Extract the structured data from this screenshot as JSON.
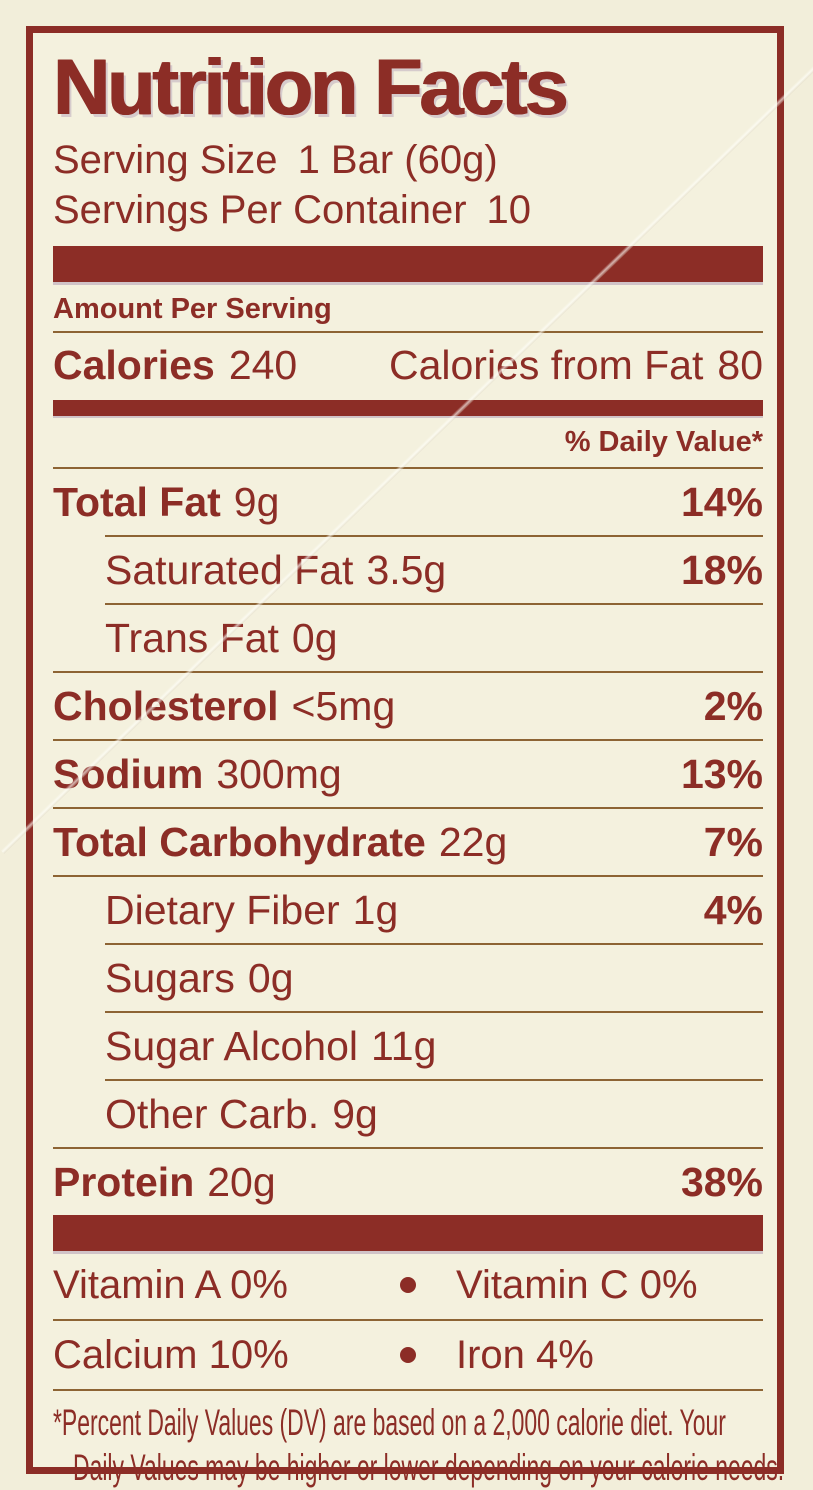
{
  "title": "Nutrition Facts",
  "serving": {
    "size_label": "Serving Size",
    "size_value": "1 Bar (60g)",
    "per_container_label": "Servings Per Container",
    "per_container_value": "10"
  },
  "amount_per_serving": "Amount Per Serving",
  "calories": {
    "label": "Calories",
    "value": "240",
    "from_fat_label": "Calories from Fat",
    "from_fat_value": "80"
  },
  "daily_value_header": "% Daily Value*",
  "rows": [
    {
      "name": "Total Fat",
      "amount": "9g",
      "dv": "14%"
    },
    {
      "name": "Saturated Fat",
      "amount": "3.5g",
      "dv": "18%"
    },
    {
      "name": "Trans Fat",
      "amount": "0g",
      "dv": ""
    },
    {
      "name": "Cholesterol",
      "amount": "<5mg",
      "dv": "2%"
    },
    {
      "name": "Sodium",
      "amount": "300mg",
      "dv": "13%"
    },
    {
      "name": "Total Carbohydrate",
      "amount": "22g",
      "dv": "7%"
    },
    {
      "name": "Dietary Fiber",
      "amount": "1g",
      "dv": "4%"
    },
    {
      "name": "Sugars",
      "amount": "0g",
      "dv": ""
    },
    {
      "name": "Sugar Alcohol",
      "amount": "11g",
      "dv": ""
    },
    {
      "name": "Other Carb.",
      "amount": "9g",
      "dv": ""
    },
    {
      "name": "Protein",
      "amount": "20g",
      "dv": "38%"
    }
  ],
  "micros": {
    "vitamin_a": "Vitamin A 0%",
    "vitamin_c": "Vitamin C 0%",
    "calcium": "Calcium 10%",
    "iron": "Iron 4%"
  },
  "footnote": {
    "line1": "*Percent Daily Values (DV) are based on a 2,000 calorie diet. Your",
    "line2": "Daily Values may be higher or lower depending on your calorie needs."
  },
  "colors": {
    "ink": "#8c2d26",
    "background": "#f4f1de",
    "thin_rule": "#8d6434"
  }
}
